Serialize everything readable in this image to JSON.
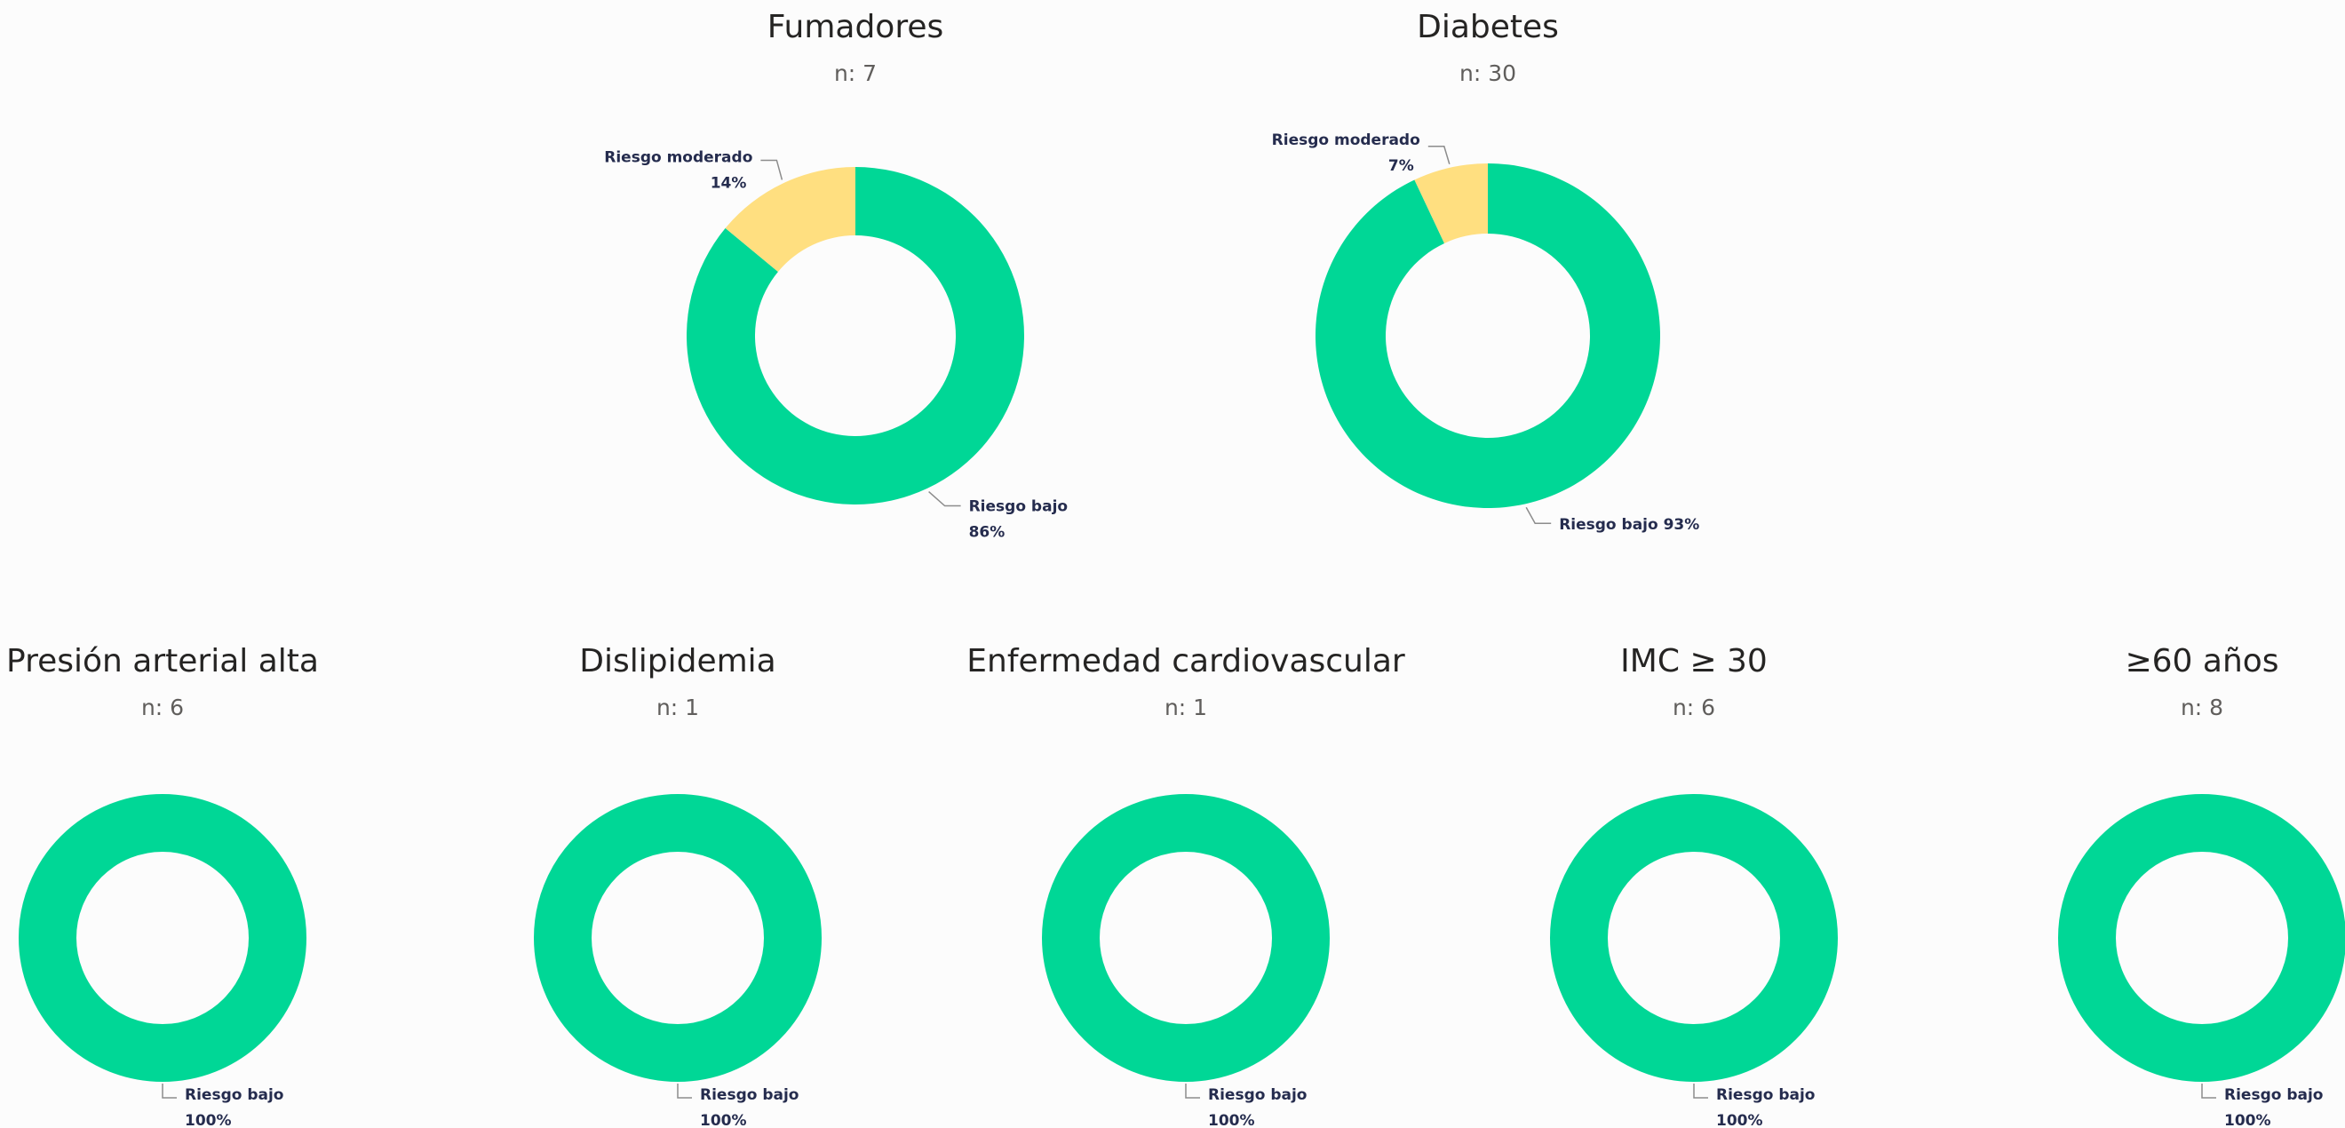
{
  "colors": {
    "riesgo_bajo": "#00d796",
    "riesgo_moderado": "#ffdf80",
    "leader": "#8c8c8c"
  },
  "chart_data": [
    {
      "type": "donut",
      "title": "Fumadores",
      "subtitle": "n: 7",
      "series": [
        {
          "name": "Riesgo bajo",
          "value": 86,
          "label": "86%"
        },
        {
          "name": "Riesgo moderado",
          "value": 14,
          "label": "14%"
        }
      ]
    },
    {
      "type": "donut",
      "title": "Diabetes",
      "subtitle": "n: 30",
      "series": [
        {
          "name": "Riesgo bajo",
          "value": 93,
          "label": "93%"
        },
        {
          "name": "Riesgo moderado",
          "value": 7,
          "label": "7%"
        }
      ]
    },
    {
      "type": "donut",
      "title": "Presión arterial alta",
      "subtitle": "n: 6",
      "series": [
        {
          "name": "Riesgo bajo",
          "value": 100,
          "label": "100%"
        }
      ]
    },
    {
      "type": "donut",
      "title": "Dislipidemia",
      "subtitle": "n: 1",
      "series": [
        {
          "name": "Riesgo bajo",
          "value": 100,
          "label": "100%"
        }
      ]
    },
    {
      "type": "donut",
      "title": "Enfermedad cardiovascular",
      "subtitle": "n: 1",
      "series": [
        {
          "name": "Riesgo bajo",
          "value": 100,
          "label": "100%"
        }
      ]
    },
    {
      "type": "donut",
      "title": "IMC ≥ 30",
      "subtitle": "n: 6",
      "series": [
        {
          "name": "Riesgo bajo",
          "value": 100,
          "label": "100%"
        }
      ]
    },
    {
      "type": "donut",
      "title": "≥60 años",
      "subtitle": "n: 8",
      "series": [
        {
          "name": "Riesgo bajo",
          "value": 100,
          "label": "100%"
        }
      ]
    }
  ]
}
